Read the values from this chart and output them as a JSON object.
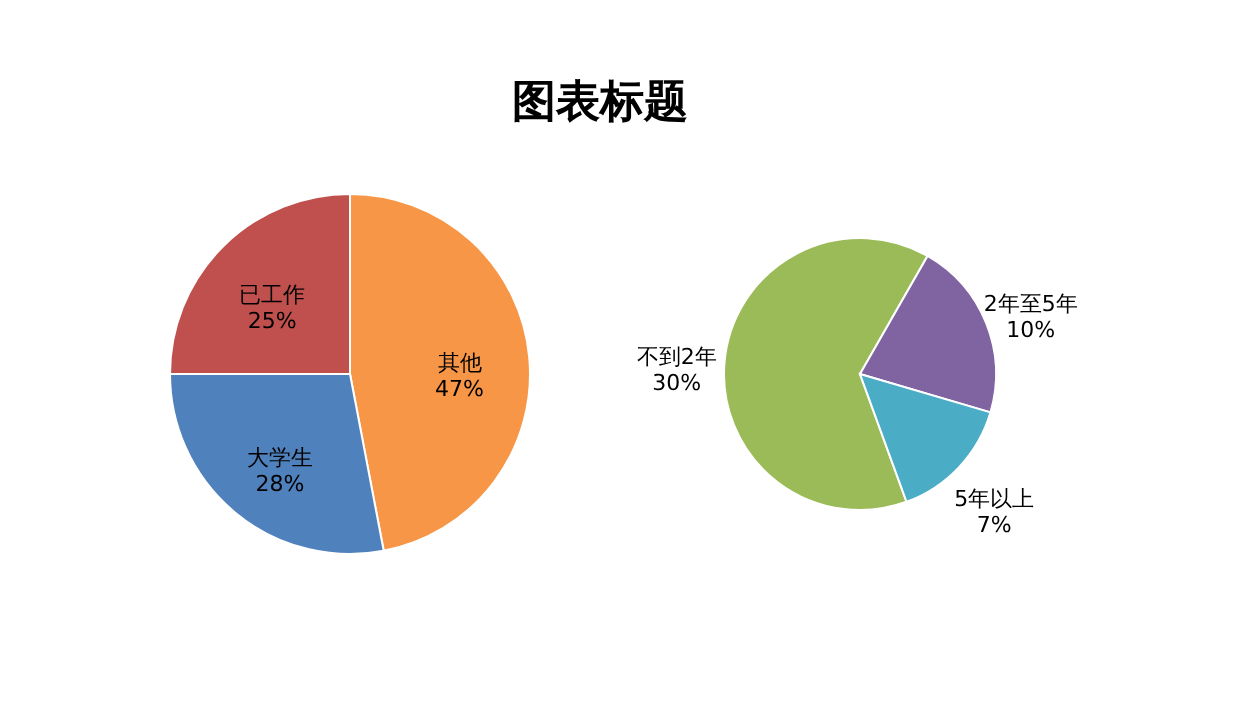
{
  "chart_data": [
    {
      "type": "pie",
      "title": "图表标题",
      "categories": [
        "其他",
        "大学生",
        "已工作"
      ],
      "values": [
        47,
        28,
        25
      ],
      "value_labels": [
        "47%",
        "28%",
        "25%"
      ],
      "colors": [
        "#f79646",
        "#4f81bd",
        "#c0504d"
      ],
      "legend": false
    },
    {
      "type": "pie",
      "categories": [
        "不到2年",
        "2年至5年",
        "5年以上"
      ],
      "values": [
        30,
        10,
        7
      ],
      "value_labels": [
        "30%",
        "10%",
        "7%"
      ],
      "colors": [
        "#9bbb59",
        "#8064a2",
        "#4bacc6"
      ],
      "legend": false
    }
  ]
}
